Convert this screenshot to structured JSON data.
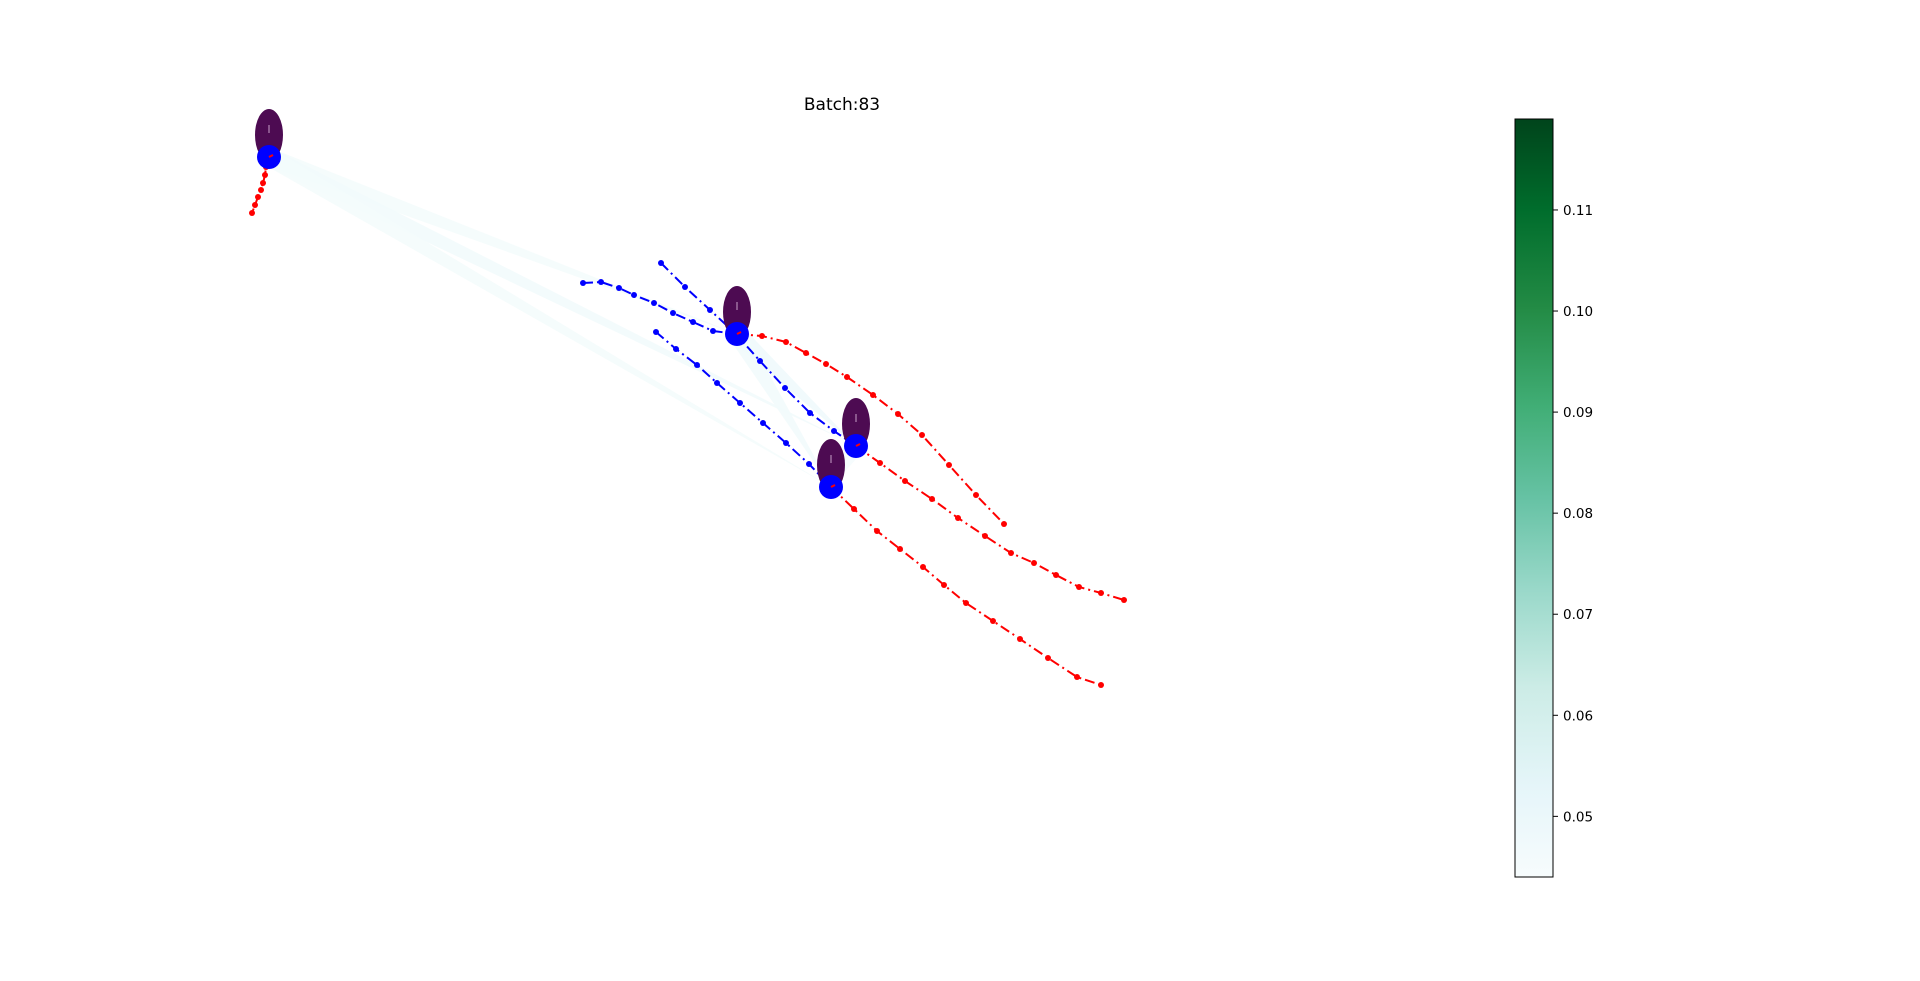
{
  "chart_data": {
    "type": "scatter",
    "title": "Batch:83",
    "xlabel": "",
    "ylabel": "",
    "axes_visible": false,
    "grid": false,
    "history_color": "#0000ff",
    "future_color": "#ff0000",
    "agent_marker_color": "#0000ff",
    "agent_shape_color": "#4d0b52",
    "attention_colormap": "Greens",
    "agents": [
      {
        "id": "agent-1",
        "position": [
          269,
          157
        ],
        "history": [],
        "future": [
          [
            268,
            160
          ],
          [
            266,
            167
          ],
          [
            265,
            175
          ],
          [
            263,
            183
          ],
          [
            261,
            190
          ],
          [
            258,
            197
          ],
          [
            255,
            205
          ],
          [
            252,
            213
          ]
        ]
      },
      {
        "id": "agent-2",
        "position": [
          737,
          334
        ],
        "history": [
          [
            583,
            283
          ],
          [
            601,
            282
          ],
          [
            619,
            288
          ],
          [
            634,
            295
          ],
          [
            654,
            303
          ],
          [
            673,
            313
          ],
          [
            693,
            322
          ],
          [
            713,
            331
          ]
        ],
        "future": [
          [
            762,
            336
          ],
          [
            786,
            342
          ],
          [
            806,
            353
          ],
          [
            826,
            364
          ],
          [
            847,
            377
          ],
          [
            873,
            395
          ],
          [
            898,
            414
          ],
          [
            922,
            435
          ],
          [
            949,
            465
          ],
          [
            976,
            495
          ],
          [
            1004,
            524
          ]
        ]
      },
      {
        "id": "agent-3",
        "position": [
          856,
          446
        ],
        "history": [
          [
            661,
            263
          ],
          [
            685,
            287
          ],
          [
            710,
            310
          ],
          [
            735,
            333
          ],
          [
            760,
            361
          ],
          [
            785,
            388
          ],
          [
            810,
            413
          ],
          [
            834,
            431
          ]
        ],
        "future": [
          [
            880,
            463
          ],
          [
            905,
            481
          ],
          [
            932,
            499
          ],
          [
            958,
            518
          ],
          [
            985,
            536
          ],
          [
            1011,
            553
          ],
          [
            1034,
            563
          ],
          [
            1056,
            575
          ],
          [
            1079,
            587
          ],
          [
            1101,
            593
          ],
          [
            1124,
            600
          ]
        ]
      },
      {
        "id": "agent-4",
        "position": [
          831,
          487
        ],
        "history": [
          [
            656,
            332
          ],
          [
            676,
            349
          ],
          [
            697,
            365
          ],
          [
            717,
            383
          ],
          [
            740,
            403
          ],
          [
            763,
            423
          ],
          [
            786,
            443
          ],
          [
            809,
            464
          ]
        ],
        "future": [
          [
            854,
            509
          ],
          [
            877,
            531
          ],
          [
            900,
            549
          ],
          [
            923,
            567
          ],
          [
            944,
            585
          ],
          [
            966,
            603
          ],
          [
            993,
            621
          ],
          [
            1020,
            639
          ],
          [
            1048,
            658
          ],
          [
            1077,
            677
          ],
          [
            1101,
            685
          ]
        ]
      }
    ],
    "attention_edges": [
      {
        "from": "agent-1",
        "to": "agent-2",
        "weight": 0.046
      },
      {
        "from": "agent-1",
        "to": "agent-3",
        "weight": 0.047
      },
      {
        "from": "agent-1",
        "to": "agent-4",
        "weight": 0.046
      },
      {
        "from": "agent-2",
        "to": "agent-3",
        "weight": 0.048
      },
      {
        "from": "agent-2",
        "to": "agent-4",
        "weight": 0.047
      },
      {
        "from": "agent-3",
        "to": "agent-4",
        "weight": 0.045
      }
    ],
    "colorbar": {
      "label": "",
      "range": [
        0.044,
        0.119
      ],
      "ticks": [
        0.05,
        0.06,
        0.07,
        0.08,
        0.09,
        0.1,
        0.11
      ],
      "tick_labels": [
        "0.05",
        "0.06",
        "0.07",
        "0.08",
        "0.09",
        "0.10",
        "0.11"
      ]
    }
  }
}
